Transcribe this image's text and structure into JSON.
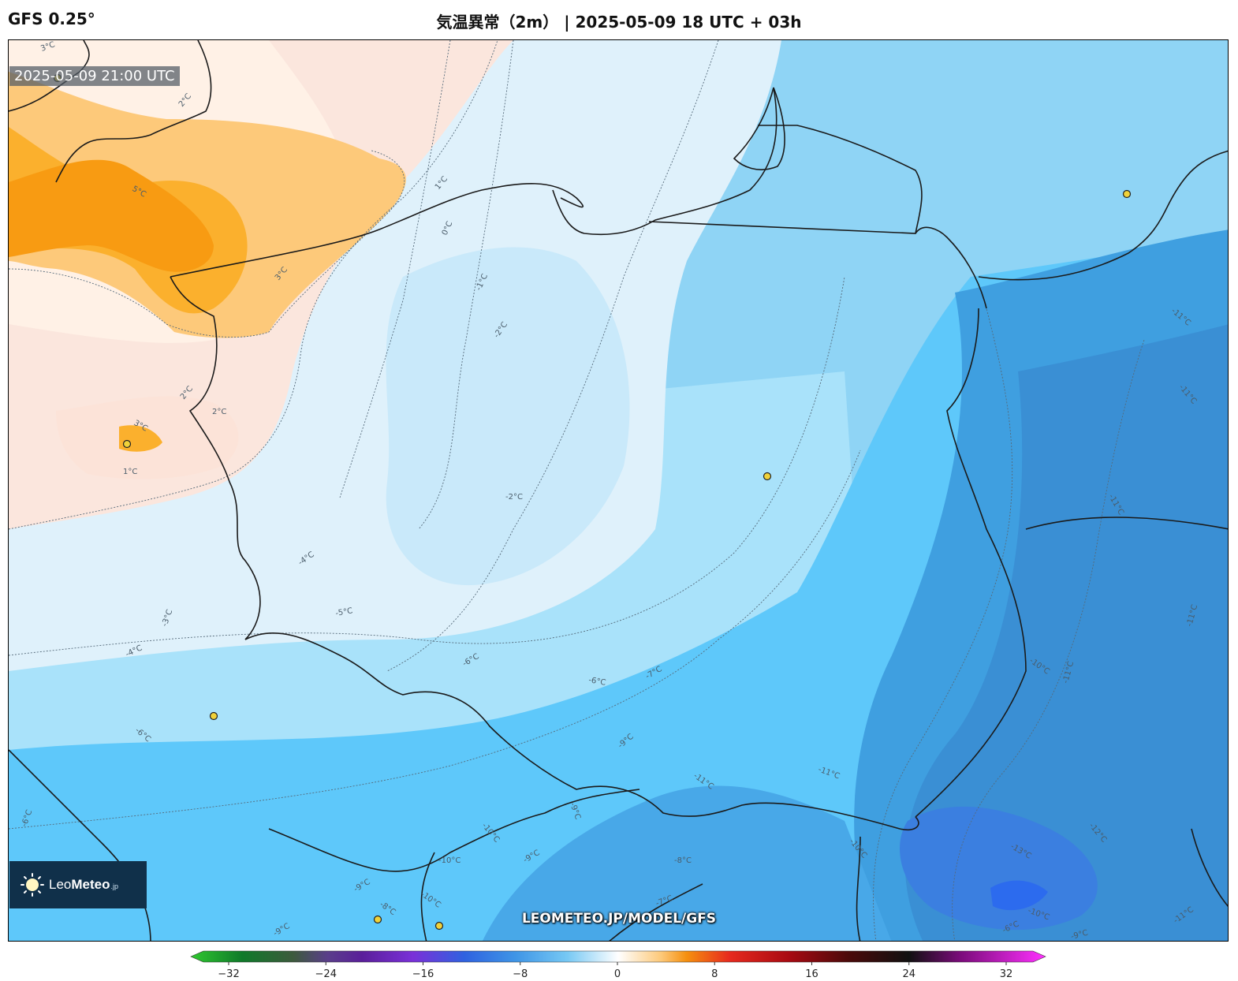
{
  "header": {
    "model": "GFS 0.25°",
    "title": "気温異常（2m） | 2025-05-09 18 UTC + 03h"
  },
  "valid_time": "2025-05-09 21:00 UTC",
  "logo": {
    "name_light": "Leo",
    "name_bold": "Meteo",
    "suffix": ".jp",
    "icon": "sun-icon"
  },
  "watermark": "LEOMETEO.JP/MODEL/GFS",
  "contour_labels": [
    {
      "text": "3°C"
    },
    {
      "text": "2°C"
    },
    {
      "text": "5°C"
    },
    {
      "text": "3°C"
    },
    {
      "text": "1°C"
    },
    {
      "text": "0°C"
    },
    {
      "text": "-1°C"
    },
    {
      "text": "-2°C"
    },
    {
      "text": "2°C"
    },
    {
      "text": "3°C"
    },
    {
      "text": "2°C"
    },
    {
      "text": "1°C"
    },
    {
      "text": "-2°C"
    },
    {
      "text": "-4°C"
    },
    {
      "text": "-3°C"
    },
    {
      "text": "-5°C"
    },
    {
      "text": "-4°C"
    },
    {
      "text": "-6°C"
    },
    {
      "text": "-6°C"
    },
    {
      "text": "-7°C"
    },
    {
      "text": "-6°C"
    },
    {
      "text": "-9°C"
    },
    {
      "text": "-11°C"
    },
    {
      "text": "-11°C"
    },
    {
      "text": "-11°C"
    },
    {
      "text": "-11°C"
    },
    {
      "text": "-11°C"
    },
    {
      "text": "-10°C"
    },
    {
      "text": "-11°C"
    },
    {
      "text": "-11°C"
    },
    {
      "text": "-12°C"
    },
    {
      "text": "-13°C"
    },
    {
      "text": "-10°C"
    },
    {
      "text": "-9°C"
    },
    {
      "text": "-10°C"
    },
    {
      "text": "-10°C"
    },
    {
      "text": "-9°C"
    },
    {
      "text": "-8°C"
    },
    {
      "text": "-7°C"
    },
    {
      "text": "-10°C"
    },
    {
      "text": "-9°C"
    },
    {
      "text": "-8°C"
    },
    {
      "text": "-9°C"
    },
    {
      "text": "-6°C"
    },
    {
      "text": "-10°C"
    },
    {
      "text": "-9°C"
    },
    {
      "text": "-11°C"
    },
    {
      "text": "-6°C"
    }
  ],
  "colorbar": {
    "min": -32,
    "max": 32,
    "ticks": [
      "−32",
      "−24",
      "−16",
      "−8",
      "0",
      "8",
      "16",
      "24",
      "32"
    ]
  }
}
